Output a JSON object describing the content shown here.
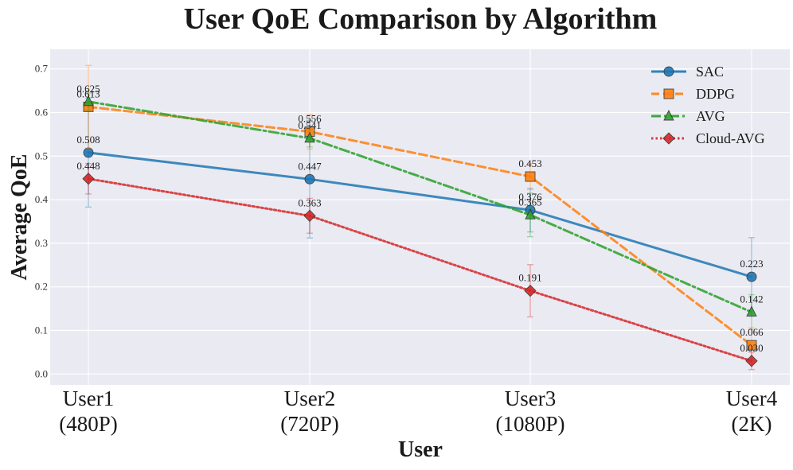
{
  "chart_data": {
    "type": "line",
    "title": "User QoE Comparison by Algorithm",
    "xlabel": "User",
    "ylabel": "Average QoE",
    "categories": [
      [
        "User1",
        "(480P)"
      ],
      [
        "User2",
        "(720P)"
      ],
      [
        "User3",
        "(1080P)"
      ],
      [
        "User4",
        "(2K)"
      ]
    ],
    "ylim": [
      -0.025,
      0.745
    ],
    "yticks": [
      "0.0",
      "0.1",
      "0.2",
      "0.3",
      "0.4",
      "0.5",
      "0.6",
      "0.7"
    ],
    "grid": true,
    "legend_position": "top-right",
    "series": [
      {
        "name": "SAC",
        "values": [
          0.508,
          0.447,
          0.376,
          0.223
        ],
        "labels": [
          "0.508",
          "0.447",
          "0.376",
          "0.223"
        ],
        "errors": [
          0.125,
          0.135,
          0.05,
          0.09
        ],
        "color": "#1f77b4",
        "dash": "solid",
        "marker": "circle"
      },
      {
        "name": "DDPG",
        "values": [
          0.613,
          0.556,
          0.453,
          0.066
        ],
        "labels": [
          "0.613",
          "0.556",
          "0.453",
          "0.066"
        ],
        "errors": [
          0.095,
          0.04,
          0.03,
          0.04
        ],
        "color": "#ff7f0e",
        "dash": "dashed",
        "marker": "square"
      },
      {
        "name": "AVG",
        "values": [
          0.625,
          0.541,
          0.365,
          0.142
        ],
        "labels": [
          "0.625",
          "0.541",
          "0.365",
          "0.142"
        ],
        "errors": [
          0.02,
          0.02,
          0.05,
          0.04
        ],
        "color": "#2ca02c",
        "dash": "dashdot",
        "marker": "triangle"
      },
      {
        "name": "Cloud-AVG",
        "values": [
          0.448,
          0.363,
          0.191,
          0.03
        ],
        "labels": [
          "0.448",
          "0.363",
          "0.191",
          "0.030"
        ],
        "errors": [
          0.035,
          0.04,
          0.06,
          0.02
        ],
        "color": "#d62728",
        "dash": "dotted",
        "marker": "diamond"
      }
    ]
  }
}
